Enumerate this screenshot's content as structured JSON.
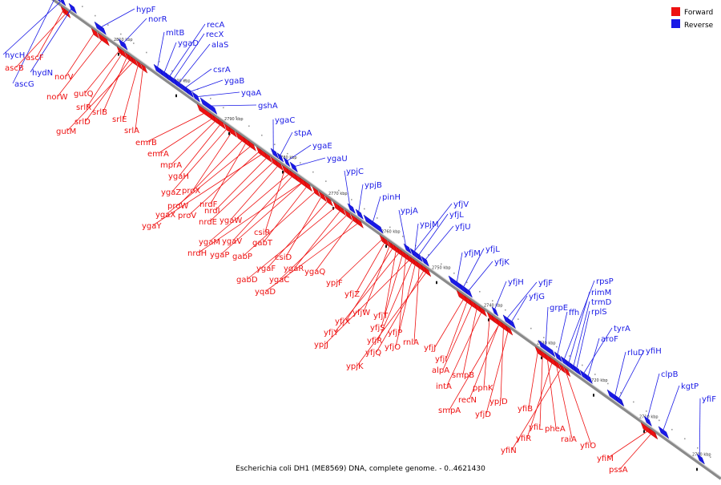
{
  "colors": {
    "forward": "#ee1111",
    "reverse": "#1a1ae6",
    "backbone": "#8a8a8a",
    "tick": "#111111"
  },
  "legend": {
    "forward": "Forward",
    "reverse": "Reverse"
  },
  "caption": "Escherichia coli DH1 (ME8569) DNA, complete genome. - 0..4621430",
  "ticks": [
    "2810 kbp",
    "2800 kbp",
    "2790 kbp",
    "2780 kbp",
    "2770 kbp",
    "2760 kbp",
    "2750 kbp",
    "2740 kbp",
    "2730 kbp",
    "2720 kbp",
    "2710 kbp",
    "2700 kbp"
  ],
  "reverse_genes": [
    "hypF",
    "norR",
    "hycH",
    "hydN",
    "ascG",
    "mltB",
    "ygaD",
    "recA",
    "recX",
    "alaS",
    "csrA",
    "ygaB",
    "yqaA",
    "gshA",
    "ygaC",
    "stpA",
    "ygaE",
    "ygaU",
    "ypjC",
    "ypjB",
    "pinH",
    "ypjA",
    "yfjV",
    "yfjL",
    "ypjM",
    "yfjU",
    "yfjM",
    "yfjL",
    "yfjK",
    "yfjH",
    "yfjF",
    "yfjG",
    "grpE",
    "ffh",
    "rpsP",
    "rimM",
    "trmD",
    "rplS",
    "tyrA",
    "aroF",
    "rluD",
    "yfiH",
    "clpB",
    "kgtP",
    "yfiF"
  ],
  "forward_genes": [
    "ascF",
    "ascB",
    "norV",
    "norW",
    "gutQ",
    "srlR",
    "srlB",
    "srlD",
    "gutM",
    "srlE",
    "srlA",
    "emrB",
    "emrA",
    "mprA",
    "ygaH",
    "ygaZ",
    "proX",
    "proW",
    "nrdF",
    "proV",
    "ygaX",
    "nrdI",
    "ygaY",
    "nrdE",
    "ygaW",
    "csiR",
    "ygaM",
    "ygaV",
    "nrdH",
    "ygaP",
    "gabT",
    "gabP",
    "csiD",
    "ygaF",
    "gabD",
    "ygaR",
    "ygaC",
    "ygaQ",
    "yqaD",
    "ypjF",
    "yfjZ",
    "yfjW",
    "yfjX",
    "yfjT",
    "yfjY",
    "yfjS",
    "yfjP",
    "ypjJ",
    "yfjR",
    "yfjO",
    "rnlA",
    "yfjQ",
    "ypjK",
    "yfjJ",
    "yfjI",
    "alpA",
    "smpB",
    "intA",
    "ppnK",
    "recN",
    "smpA",
    "ypjD",
    "yfjD",
    "yfiB",
    "yfiL",
    "pheA",
    "yfiR",
    "raiA",
    "yfiN",
    "yfiO",
    "yfiM",
    "pssA"
  ]
}
